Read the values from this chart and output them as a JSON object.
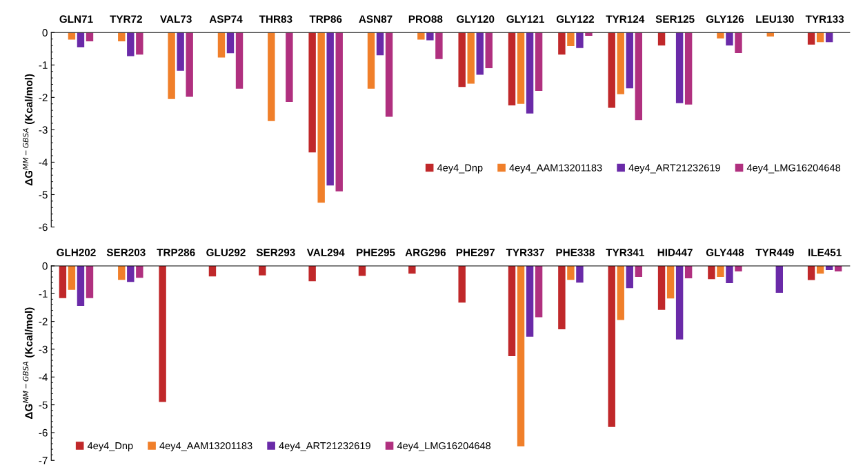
{
  "chart_data": [
    {
      "type": "bar",
      "ylabel": "ΔG$^{MM−GBSA}$ (Kcal/mol)",
      "categories": [
        "GLN71",
        "TYR72",
        "VAL73",
        "ASP74",
        "THR83",
        "TRP86",
        "ASN87",
        "PRO88",
        "GLY120",
        "GLY121",
        "GLY122",
        "TYR124",
        "SER125",
        "GLY126",
        "LEU130",
        "TYR133"
      ],
      "series": [
        {
          "name": "4ey4_Dnp",
          "color": "#c0282a",
          "values": [
            null,
            null,
            null,
            null,
            null,
            -3.7,
            null,
            null,
            -1.68,
            -2.25,
            -0.68,
            -2.32,
            -0.4,
            null,
            null,
            -0.37
          ]
        },
        {
          "name": "4ey4_AAM13201183",
          "color": "#f07f2a",
          "values": [
            -0.22,
            -0.27,
            -2.05,
            -0.77,
            -2.73,
            -5.25,
            -1.73,
            -0.22,
            -1.58,
            -2.2,
            -0.42,
            -1.9,
            null,
            -0.18,
            -0.12,
            -0.3
          ]
        },
        {
          "name": "4ey4_ART21232619",
          "color": "#6a2aa8",
          "values": [
            -0.45,
            -0.73,
            -1.18,
            -0.64,
            null,
            -4.72,
            -0.7,
            -0.24,
            -1.3,
            -2.5,
            -0.48,
            -1.72,
            -2.18,
            -0.4,
            null,
            -0.3
          ]
        },
        {
          "name": "4ey4_LMG16204648",
          "color": "#b0307f",
          "values": [
            -0.27,
            -0.68,
            -1.98,
            -1.73,
            -2.14,
            -4.9,
            -2.6,
            -0.82,
            -1.1,
            -1.8,
            -0.1,
            -2.7,
            -2.22,
            -0.63,
            null,
            null
          ]
        }
      ],
      "ylim": [
        -6,
        0
      ],
      "yticks": [
        -6,
        -5,
        -4,
        -3,
        -2,
        -1,
        0
      ],
      "grid": false,
      "legend": "right"
    },
    {
      "type": "bar",
      "ylabel": "ΔG$^{MM−GBSA}$ (Kcal/mol)",
      "categories": [
        "GLH202",
        "SER203",
        "TRP286",
        "GLU292",
        "SER293",
        "VAL294",
        "PHE295",
        "ARG296",
        "PHE297",
        "TYR337",
        "PHE338",
        "TYR341",
        "HID447",
        "GLY448",
        "TYR449",
        "ILE451"
      ],
      "series": [
        {
          "name": "4ey4_Dnp",
          "color": "#c0282a",
          "values": [
            -1.16,
            null,
            -4.9,
            -0.38,
            -0.34,
            -0.55,
            -0.36,
            -0.28,
            -1.32,
            -3.25,
            -2.28,
            -5.8,
            -1.58,
            -0.48,
            null,
            -0.51
          ]
        },
        {
          "name": "4ey4_AAM13201183",
          "color": "#f07f2a",
          "values": [
            -0.86,
            -0.5,
            null,
            null,
            null,
            null,
            null,
            null,
            null,
            -6.5,
            -0.5,
            -1.95,
            -1.17,
            -0.4,
            null,
            -0.28
          ]
        },
        {
          "name": "4ey4_ART21232619",
          "color": "#6a2aa8",
          "values": [
            -1.44,
            -0.58,
            null,
            null,
            null,
            null,
            null,
            null,
            null,
            -2.55,
            -0.6,
            -0.8,
            -2.65,
            -0.62,
            -0.97,
            -0.15
          ]
        },
        {
          "name": "4ey4_LMG16204648",
          "color": "#b0307f",
          "values": [
            -1.16,
            -0.43,
            null,
            null,
            null,
            null,
            null,
            null,
            null,
            -1.85,
            null,
            -0.4,
            -0.45,
            -0.2,
            null,
            -0.2
          ]
        }
      ],
      "ylim": [
        -7,
        0
      ],
      "yticks": [
        -7,
        -6,
        -5,
        -4,
        -3,
        -2,
        -1,
        0
      ],
      "grid": false,
      "legend": "bottom left"
    }
  ]
}
